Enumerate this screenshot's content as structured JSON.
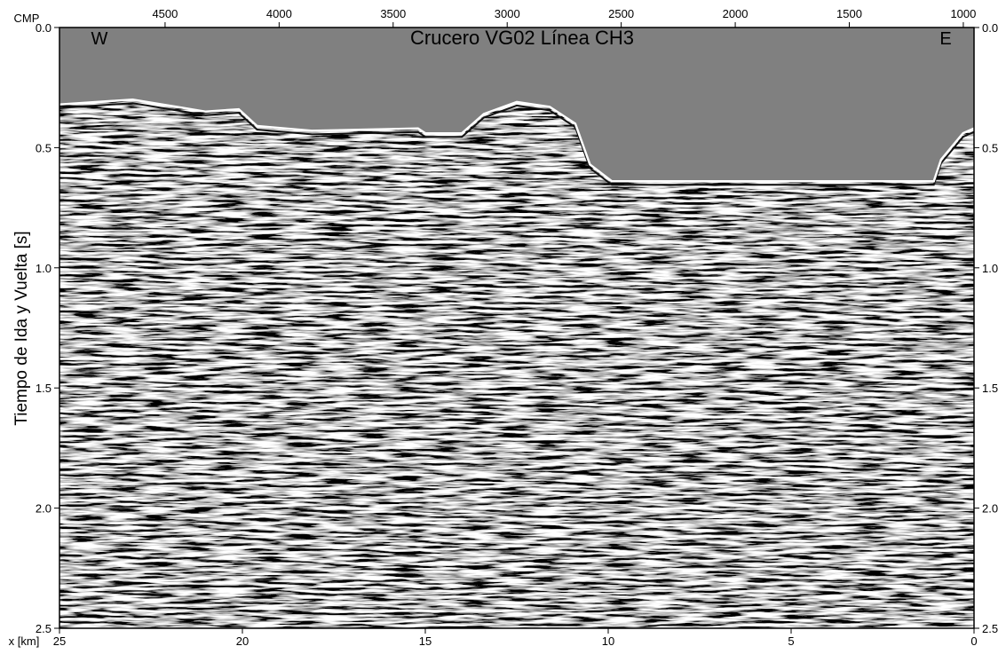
{
  "chart_data": {
    "type": "seismic",
    "title": "Crucero VG02 Línea CH3",
    "left_annotation": "W",
    "right_annotation": "E",
    "xlabel": "x [km]",
    "x2label": "CMP",
    "ylabel": "Tiempo de Ida y Vuelta [s]",
    "xlim": [
      25,
      0
    ],
    "xticks": [
      25,
      20,
      15,
      10,
      5,
      0
    ],
    "x2lim": [
      4963,
      953
    ],
    "x2ticks": [
      4500,
      4000,
      3500,
      3000,
      2500,
      2000,
      1500,
      1000
    ],
    "ylim": [
      0,
      2.5
    ],
    "yticks": [
      {
        "value": 0,
        "label": "0.0"
      },
      {
        "value": 0.5,
        "label": "0.5"
      },
      {
        "value": 1,
        "label": "1.0"
      },
      {
        "value": 1.5,
        "label": "1.5"
      },
      {
        "value": 2,
        "label": "2.0"
      },
      {
        "value": 2.5,
        "label": "2.5"
      }
    ],
    "water_color": "#808080",
    "seafloor": {
      "x": [
        25,
        23,
        21.8,
        21,
        20.1,
        19.6,
        18.1,
        15.2,
        15,
        14,
        13.4,
        12.5,
        11.6,
        10.9,
        10.5,
        9.9,
        1.1,
        0.9,
        0.3,
        0
      ],
      "values": [
        0.32,
        0.3,
        0.33,
        0.35,
        0.34,
        0.41,
        0.43,
        0.42,
        0.44,
        0.44,
        0.36,
        0.31,
        0.33,
        0.4,
        0.57,
        0.64,
        0.64,
        0.55,
        0.44,
        0.42
      ]
    }
  }
}
